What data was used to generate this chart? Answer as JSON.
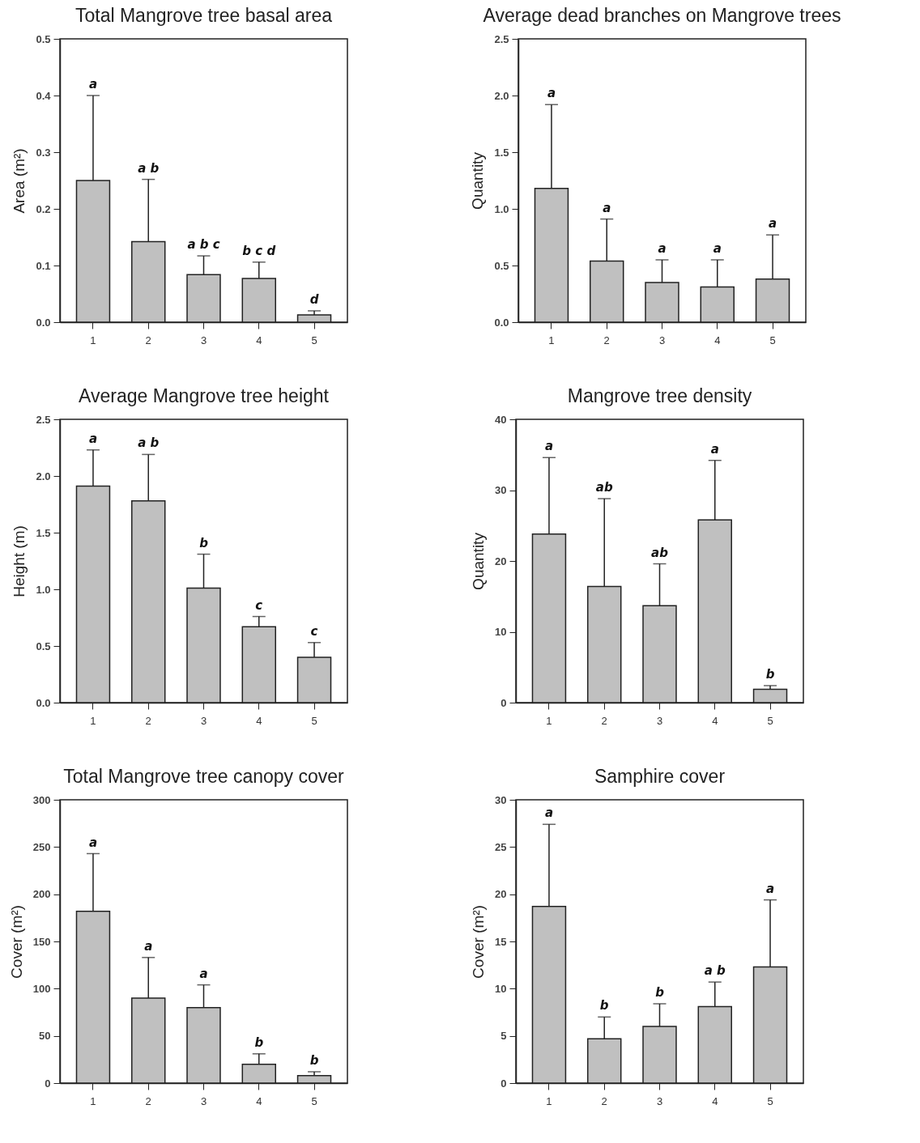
{
  "chart_data": [
    {
      "type": "bar",
      "title": "Total Mangrove tree basal area",
      "ylabel": "Area (m²)",
      "categories": [
        "1",
        "2",
        "3",
        "4",
        "5"
      ],
      "color": "#c0c0c0",
      "values": [
        0.25,
        0.142,
        0.084,
        0.077,
        0.013
      ],
      "errors": [
        [
          0.25,
          0.4
        ],
        [
          0.142,
          0.252
        ],
        [
          0.084,
          0.117
        ],
        [
          0.077,
          0.106
        ],
        [
          0.013,
          0.02
        ]
      ],
      "ylim": [
        0,
        0.5
      ],
      "yticks": [
        {
          "value": 0,
          "label": "0.0"
        },
        0.1,
        0.2,
        0.3,
        0.4,
        0.5
      ],
      "grid": false,
      "annotations": [
        {
          "text": "a",
          "x": "1",
          "y": 0.4
        },
        {
          "text": "a b",
          "x": "2",
          "y": 0.252
        },
        {
          "text": "a b c",
          "x": "3",
          "y": 0.117
        },
        {
          "text": "b c d",
          "x": "4",
          "y": 0.106
        },
        {
          "text": "d",
          "x": "5",
          "y": 0.02
        }
      ]
    },
    {
      "type": "bar",
      "title": "Average dead branches on Mangrove trees",
      "ylabel": "Quantity",
      "categories": [
        "1",
        "2",
        "3",
        "4",
        "5"
      ],
      "color": "#c0c0c0",
      "values": [
        1.18,
        0.54,
        0.35,
        0.31,
        0.38
      ],
      "errors": [
        [
          1.18,
          1.92
        ],
        [
          0.54,
          0.91
        ],
        [
          0.35,
          0.55
        ],
        [
          0.31,
          0.55
        ],
        [
          0.38,
          0.77
        ]
      ],
      "ylim": [
        0,
        2.5
      ],
      "yticks": [
        {
          "value": 0,
          "label": "0.0"
        },
        0.5,
        {
          "value": 1,
          "label": "1.0"
        },
        1.5,
        {
          "value": 2,
          "label": "2.0"
        },
        2.5
      ],
      "grid": false,
      "annotations": [
        {
          "text": "a",
          "x": "1",
          "y": 1.92
        },
        {
          "text": "a",
          "x": "2",
          "y": 0.91
        },
        {
          "text": "a",
          "x": "3",
          "y": 0.55
        },
        {
          "text": "a",
          "x": "4",
          "y": 0.55
        },
        {
          "text": "a",
          "x": "5",
          "y": 0.77
        }
      ]
    },
    {
      "type": "bar",
      "title": "Average Mangrove tree height",
      "ylabel": "Height (m)",
      "categories": [
        "1",
        "2",
        "3",
        "4",
        "5"
      ],
      "color": "#c0c0c0",
      "values": [
        1.91,
        1.78,
        1.01,
        0.67,
        0.4
      ],
      "errors": [
        [
          1.91,
          2.23
        ],
        [
          1.78,
          2.19
        ],
        [
          1.01,
          1.31
        ],
        [
          0.67,
          0.76
        ],
        [
          0.4,
          0.53
        ]
      ],
      "ylim": [
        0,
        2.5
      ],
      "yticks": [
        {
          "value": 0,
          "label": "0.0"
        },
        0.5,
        {
          "value": 1,
          "label": "1.0"
        },
        1.5,
        {
          "value": 2,
          "label": "2.0"
        },
        2.5
      ],
      "grid": false,
      "annotations": [
        {
          "text": "a",
          "x": "1",
          "y": 2.23
        },
        {
          "text": "a b",
          "x": "2",
          "y": 2.19
        },
        {
          "text": "b",
          "x": "3",
          "y": 1.31
        },
        {
          "text": "c",
          "x": "4",
          "y": 0.76
        },
        {
          "text": "c",
          "x": "5",
          "y": 0.53
        }
      ]
    },
    {
      "type": "bar",
      "title": "Mangrove tree density",
      "ylabel": "Quantity",
      "categories": [
        "1",
        "2",
        "3",
        "4",
        "5"
      ],
      "color": "#c0c0c0",
      "values": [
        23.8,
        16.4,
        13.7,
        25.8,
        1.9
      ],
      "errors": [
        [
          23.8,
          34.6
        ],
        [
          16.4,
          28.8
        ],
        [
          13.7,
          19.6
        ],
        [
          25.8,
          34.2
        ],
        [
          1.9,
          2.4
        ]
      ],
      "ylim": [
        0,
        40
      ],
      "yticks": [
        0,
        10,
        20,
        30,
        40
      ],
      "grid": false,
      "annotations": [
        {
          "text": "a",
          "x": "1",
          "y": 34.6
        },
        {
          "text": "ab",
          "x": "2",
          "y": 28.8
        },
        {
          "text": "ab",
          "x": "3",
          "y": 19.6
        },
        {
          "text": "a",
          "x": "4",
          "y": 34.2
        },
        {
          "text": "b",
          "x": "5",
          "y": 2.4
        }
      ]
    },
    {
      "type": "bar",
      "title": "Total Mangrove tree canopy cover",
      "ylabel": "Cover (m²)",
      "categories": [
        "1",
        "2",
        "3",
        "4",
        "5"
      ],
      "color": "#c0c0c0",
      "values": [
        182,
        90,
        80,
        20,
        8
      ],
      "errors": [
        [
          182,
          243
        ],
        [
          90,
          133
        ],
        [
          80,
          104
        ],
        [
          20,
          31
        ],
        [
          8,
          12
        ]
      ],
      "ylim": [
        0,
        300
      ],
      "yticks": [
        0,
        50,
        100,
        150,
        200,
        250,
        300
      ],
      "grid": false,
      "annotations": [
        {
          "text": "a",
          "x": "1",
          "y": 243
        },
        {
          "text": "a",
          "x": "2",
          "y": 133
        },
        {
          "text": "a",
          "x": "3",
          "y": 104
        },
        {
          "text": "b",
          "x": "4",
          "y": 31
        },
        {
          "text": "b",
          "x": "5",
          "y": 12
        }
      ]
    },
    {
      "type": "bar",
      "title": "Samphire cover",
      "ylabel": "Cover (m²)",
      "categories": [
        "1",
        "2",
        "3",
        "4",
        "5"
      ],
      "color": "#c0c0c0",
      "values": [
        18.7,
        4.7,
        6.0,
        8.1,
        12.3
      ],
      "errors": [
        [
          18.7,
          27.4
        ],
        [
          4.7,
          7.0
        ],
        [
          6.0,
          8.4
        ],
        [
          8.1,
          10.7
        ],
        [
          12.3,
          19.4
        ]
      ],
      "ylim": [
        0,
        30
      ],
      "yticks": [
        0,
        5,
        10,
        15,
        20,
        25,
        30
      ],
      "grid": false,
      "annotations": [
        {
          "text": "a",
          "x": "1",
          "y": 27.4
        },
        {
          "text": "b",
          "x": "2",
          "y": 7.0
        },
        {
          "text": "b",
          "x": "3",
          "y": 8.4
        },
        {
          "text": "a b",
          "x": "4",
          "y": 10.7
        },
        {
          "text": "a",
          "x": "5",
          "y": 19.4
        }
      ]
    }
  ]
}
